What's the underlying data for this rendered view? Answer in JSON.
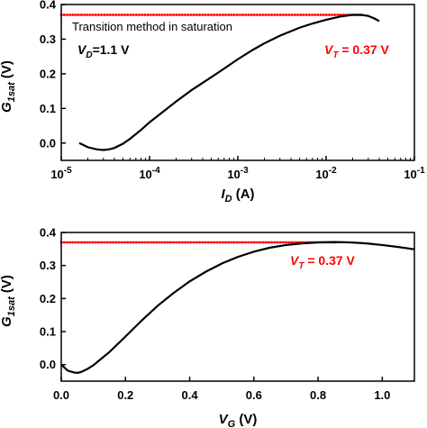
{
  "colors": {
    "curve": "#000000",
    "threshold": "#ff0000",
    "axis": "#000000"
  },
  "chart_data": [
    {
      "type": "line",
      "xscale": "log",
      "xlim": [
        1e-05,
        0.1
      ],
      "ylim": [
        -0.05,
        0.4
      ],
      "xticks": [
        {
          "value": 1e-05,
          "base": "10",
          "exp": "-5"
        },
        {
          "value": 0.0001,
          "base": "10",
          "exp": "-4"
        },
        {
          "value": 0.001,
          "base": "10",
          "exp": "-3"
        },
        {
          "value": 0.01,
          "base": "10",
          "exp": "-2"
        },
        {
          "value": 0.1,
          "base": "10",
          "exp": "-1"
        }
      ],
      "yticks": [
        {
          "value": 0.0,
          "label": "0.0"
        },
        {
          "value": 0.1,
          "label": "0.1"
        },
        {
          "value": 0.2,
          "label": "0.2"
        },
        {
          "value": 0.3,
          "label": "0.3"
        },
        {
          "value": 0.4,
          "label": "0.4"
        }
      ],
      "xlabel": {
        "main": "I",
        "sub": "D",
        "unit": " (A)"
      },
      "ylabel": {
        "main": "G",
        "sub": "1sat",
        "unit": " (V)"
      },
      "annotations": {
        "method": "Transition method in saturation",
        "vd_main": "V",
        "vd_sub": "D",
        "vd_value": "=1.1 V",
        "vt_main": "V",
        "vt_sub": "T",
        "vt_value": " = 0.37 V"
      },
      "threshold": {
        "y": 0.37,
        "x_start": 1e-05,
        "x_end": 0.025
      },
      "series": [
        {
          "x": [
            1.6e-05,
            2e-05,
            2.5e-05,
            3e-05,
            3.5e-05,
            4e-05,
            5e-05,
            6e-05,
            8e-05,
            0.0001,
            0.00015,
            0.0002,
            0.0003,
            0.0005,
            0.0007,
            0.001,
            0.0015,
            0.002,
            0.003,
            0.005,
            0.007,
            0.01,
            0.015,
            0.02,
            0.025,
            0.03,
            0.035,
            0.04
          ],
          "y": [
            0.0,
            -0.012,
            -0.018,
            -0.02,
            -0.018,
            -0.014,
            -0.002,
            0.012,
            0.038,
            0.06,
            0.095,
            0.12,
            0.153,
            0.19,
            0.215,
            0.242,
            0.27,
            0.288,
            0.31,
            0.333,
            0.345,
            0.356,
            0.366,
            0.37,
            0.37,
            0.367,
            0.36,
            0.352
          ]
        }
      ]
    },
    {
      "type": "line",
      "xlim": [
        0.0,
        1.1
      ],
      "ylim": [
        -0.05,
        0.4
      ],
      "xticks": [
        {
          "value": 0.0,
          "label": "0.0"
        },
        {
          "value": 0.2,
          "label": "0.2"
        },
        {
          "value": 0.4,
          "label": "0.4"
        },
        {
          "value": 0.6,
          "label": "0.6"
        },
        {
          "value": 0.8,
          "label": "0.8"
        },
        {
          "value": 1.0,
          "label": "1.0"
        }
      ],
      "yticks": [
        {
          "value": 0.0,
          "label": "0.0"
        },
        {
          "value": 0.1,
          "label": "0.1"
        },
        {
          "value": 0.2,
          "label": "0.2"
        },
        {
          "value": 0.3,
          "label": "0.3"
        },
        {
          "value": 0.4,
          "label": "0.4"
        }
      ],
      "xlabel": {
        "main": "V",
        "sub": "G",
        "unit": " (V)"
      },
      "ylabel": {
        "main": "G",
        "sub": "1sat",
        "unit": " (V)"
      },
      "annotations": {
        "vt_main": "V",
        "vt_sub": "T",
        "vt_value": " = 0.37 V"
      },
      "threshold": {
        "y": 0.37,
        "x_start": 0.0,
        "x_end": 0.86
      },
      "series": [
        {
          "x": [
            0.0,
            0.02,
            0.04,
            0.05,
            0.06,
            0.08,
            0.1,
            0.15,
            0.2,
            0.25,
            0.3,
            0.35,
            0.4,
            0.45,
            0.5,
            0.55,
            0.6,
            0.65,
            0.7,
            0.75,
            0.8,
            0.85,
            0.9,
            0.95,
            1.0,
            1.05,
            1.1
          ],
          "y": [
            0.0,
            -0.018,
            -0.024,
            -0.025,
            -0.023,
            -0.014,
            -0.002,
            0.038,
            0.085,
            0.133,
            0.178,
            0.217,
            0.252,
            0.281,
            0.306,
            0.326,
            0.342,
            0.354,
            0.362,
            0.367,
            0.37,
            0.371,
            0.37,
            0.367,
            0.362,
            0.356,
            0.349
          ]
        }
      ]
    }
  ]
}
